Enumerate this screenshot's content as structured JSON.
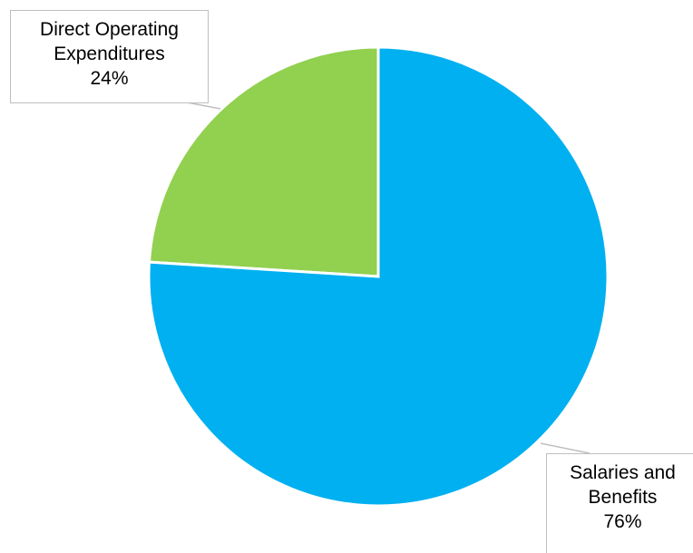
{
  "chart_data": {
    "type": "pie",
    "title": "",
    "slices": [
      {
        "label_lines": [
          "Direct Operating",
          "Expenditures"
        ],
        "value": 24,
        "value_label": "24%",
        "color": "#92d050"
      },
      {
        "label_lines": [
          "Salaries and",
          "Benefits"
        ],
        "value": 76,
        "value_label": "76%",
        "color": "#00b0f0"
      }
    ],
    "start_angle": "12 o'clock",
    "direction": "clockwise",
    "slice_border_color": "#ffffff",
    "leader_line_color": "#bfbfbf",
    "legend": "none",
    "data_labels": "callouts"
  }
}
